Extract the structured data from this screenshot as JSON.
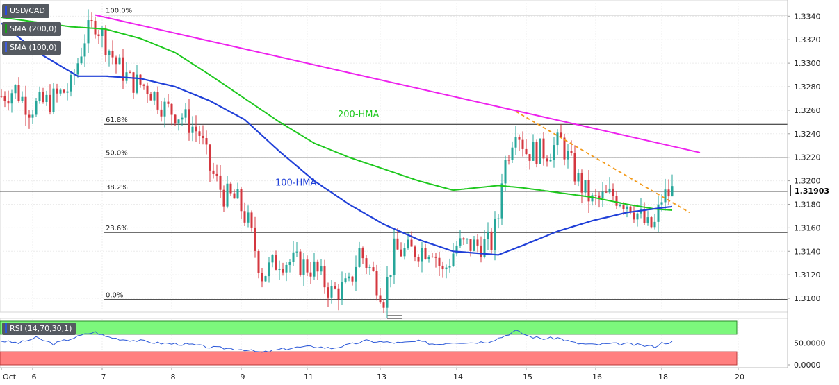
{
  "symbol": "USD/CAD",
  "indicators": [
    {
      "label": "SMA (200,0)",
      "color": "#1b9d1b"
    },
    {
      "label": "SMA (100,0)",
      "color": "#3f5bd8"
    }
  ],
  "last_price": "1.31903",
  "rsi_label": "RSI (14,70,30,1)",
  "rsi_ticks": [
    "50.0000",
    "0.0000"
  ],
  "colors": {
    "bull": "#26a69a",
    "bear": "#d4373f",
    "hma200": "#1ec81e",
    "hma100": "#2040d8",
    "resistance": "#ee22ee",
    "short_trend": "#f39a1a",
    "rsi_line": "#2b58d8",
    "rsi_overbought": "#7cf77c",
    "rsi_oversold": "#ff7f7f"
  },
  "chart_data": {
    "type": "candlestick",
    "title": "USD/CAD",
    "x_tick_labels": [
      "Oct",
      "6",
      "7",
      "8",
      "9",
      "11",
      "13",
      "14",
      "15",
      "16",
      "18",
      "20"
    ],
    "y_ticks": [
      1.334,
      1.332,
      1.33,
      1.328,
      1.326,
      1.324,
      1.322,
      1.32,
      1.318,
      1.316,
      1.314,
      1.312,
      1.31
    ],
    "y_tick_labels": [
      "1.3340",
      "1.3320",
      "1.3300",
      "1.3280",
      "1.3260",
      "1.3240",
      "1.3220",
      "1.3200",
      "1.3180",
      "1.3160",
      "1.3140",
      "1.3120",
      "1.3100"
    ],
    "ylim": [
      1.309,
      1.3352
    ],
    "candle_count": 210,
    "fibonacci": [
      {
        "label": "100.0%",
        "value": 1.3341
      },
      {
        "label": "61.8%",
        "value": 1.3248
      },
      {
        "label": "50.0%",
        "value": 1.322
      },
      {
        "label": "38.2%",
        "value": 1.3191
      },
      {
        "label": "23.6%",
        "value": 1.3156
      },
      {
        "label": "0.0%",
        "value": 1.3099
      }
    ],
    "annotations": [
      {
        "text": "200-HMA",
        "x": 96,
        "y": 1.3254
      },
      {
        "text": "100-HMA",
        "x": 78,
        "y": 1.3196
      }
    ],
    "series": [
      {
        "name": "200-HMA",
        "points": [
          [
            0,
            1.3339
          ],
          [
            20,
            1.3331
          ],
          [
            30,
            1.3329
          ],
          [
            40,
            1.3321
          ],
          [
            50,
            1.3309
          ],
          [
            60,
            1.329
          ],
          [
            70,
            1.327
          ],
          [
            80,
            1.325
          ],
          [
            90,
            1.3232
          ],
          [
            100,
            1.322
          ],
          [
            110,
            1.321
          ],
          [
            120,
            1.32
          ],
          [
            130,
            1.3192
          ],
          [
            143,
            1.3196
          ],
          [
            150,
            1.3194
          ],
          [
            160,
            1.319
          ],
          [
            170,
            1.3186
          ],
          [
            180,
            1.318
          ],
          [
            188,
            1.3176
          ],
          [
            193,
            1.3175
          ]
        ]
      },
      {
        "name": "100-HMA",
        "points": [
          [
            0,
            1.3334
          ],
          [
            10,
            1.331
          ],
          [
            22,
            1.3289
          ],
          [
            30,
            1.3289
          ],
          [
            40,
            1.3287
          ],
          [
            50,
            1.328
          ],
          [
            60,
            1.3268
          ],
          [
            70,
            1.3252
          ],
          [
            80,
            1.3225
          ],
          [
            90,
            1.32
          ],
          [
            100,
            1.318
          ],
          [
            110,
            1.3163
          ],
          [
            120,
            1.315
          ],
          [
            130,
            1.314
          ],
          [
            143,
            1.3137
          ],
          [
            150,
            1.3145
          ],
          [
            160,
            1.3157
          ],
          [
            170,
            1.3166
          ],
          [
            180,
            1.3173
          ],
          [
            190,
            1.3177
          ],
          [
            193,
            1.3178
          ]
        ]
      },
      {
        "name": "Resistance",
        "points": [
          [
            27,
            1.3341
          ],
          [
            201,
            1.3224
          ]
        ]
      },
      {
        "name": "Short-term trend",
        "points": [
          [
            148,
            1.3259
          ],
          [
            198,
            1.3173
          ]
        ]
      },
      {
        "name": "Price path",
        "points": [
          [
            0,
            1.3272
          ],
          [
            4,
            1.3278
          ],
          [
            8,
            1.3262
          ],
          [
            14,
            1.3268
          ],
          [
            20,
            1.328
          ],
          [
            24,
            1.3322
          ],
          [
            27,
            1.3335
          ],
          [
            30,
            1.3318
          ],
          [
            33,
            1.33
          ],
          [
            37,
            1.3285
          ],
          [
            42,
            1.328
          ],
          [
            47,
            1.3262
          ],
          [
            52,
            1.3255
          ],
          [
            57,
            1.324
          ],
          [
            60,
            1.321
          ],
          [
            64,
            1.3188
          ],
          [
            68,
            1.3183
          ],
          [
            71,
            1.3164
          ],
          [
            75,
            1.312
          ],
          [
            80,
            1.3133
          ],
          [
            85,
            1.313
          ],
          [
            90,
            1.3125
          ],
          [
            95,
            1.3105
          ],
          [
            100,
            1.311
          ],
          [
            103,
            1.314
          ],
          [
            107,
            1.312
          ],
          [
            110,
            1.3101
          ],
          [
            113,
            1.314
          ],
          [
            118,
            1.314
          ],
          [
            124,
            1.3144
          ],
          [
            127,
            1.3121
          ],
          [
            131,
            1.3145
          ],
          [
            137,
            1.3145
          ],
          [
            141,
            1.3147
          ],
          [
            143,
            1.317
          ],
          [
            144,
            1.3205
          ],
          [
            148,
            1.3248
          ],
          [
            151,
            1.3225
          ],
          [
            157,
            1.3225
          ],
          [
            161,
            1.3233
          ],
          [
            166,
            1.32
          ],
          [
            170,
            1.3182
          ],
          [
            176,
            1.3188
          ],
          [
            181,
            1.318
          ],
          [
            186,
            1.316
          ],
          [
            188,
            1.3162
          ],
          [
            190,
            1.3185
          ],
          [
            193,
            1.3191
          ]
        ]
      }
    ],
    "rsi": {
      "ylim": [
        0,
        100
      ],
      "overbought": 70,
      "oversold": 30,
      "midline": 50,
      "values": [
        [
          0,
          55
        ],
        [
          5,
          50
        ],
        [
          10,
          62
        ],
        [
          15,
          48
        ],
        [
          20,
          60
        ],
        [
          25,
          72
        ],
        [
          27,
          75
        ],
        [
          30,
          65
        ],
        [
          35,
          58
        ],
        [
          40,
          55
        ],
        [
          45,
          50
        ],
        [
          50,
          48
        ],
        [
          55,
          46
        ],
        [
          60,
          40
        ],
        [
          65,
          38
        ],
        [
          70,
          35
        ],
        [
          75,
          28
        ],
        [
          80,
          35
        ],
        [
          85,
          40
        ],
        [
          90,
          42
        ],
        [
          95,
          38
        ],
        [
          100,
          46
        ],
        [
          105,
          55
        ],
        [
          110,
          52
        ],
        [
          115,
          50
        ],
        [
          120,
          54
        ],
        [
          125,
          47
        ],
        [
          130,
          52
        ],
        [
          135,
          51
        ],
        [
          140,
          53
        ],
        [
          144,
          64
        ],
        [
          148,
          78
        ],
        [
          152,
          65
        ],
        [
          156,
          60
        ],
        [
          160,
          62
        ],
        [
          165,
          50
        ],
        [
          170,
          46
        ],
        [
          175,
          48
        ],
        [
          180,
          48
        ],
        [
          185,
          44
        ],
        [
          188,
          42
        ],
        [
          190,
          50
        ],
        [
          193,
          52
        ]
      ]
    }
  }
}
